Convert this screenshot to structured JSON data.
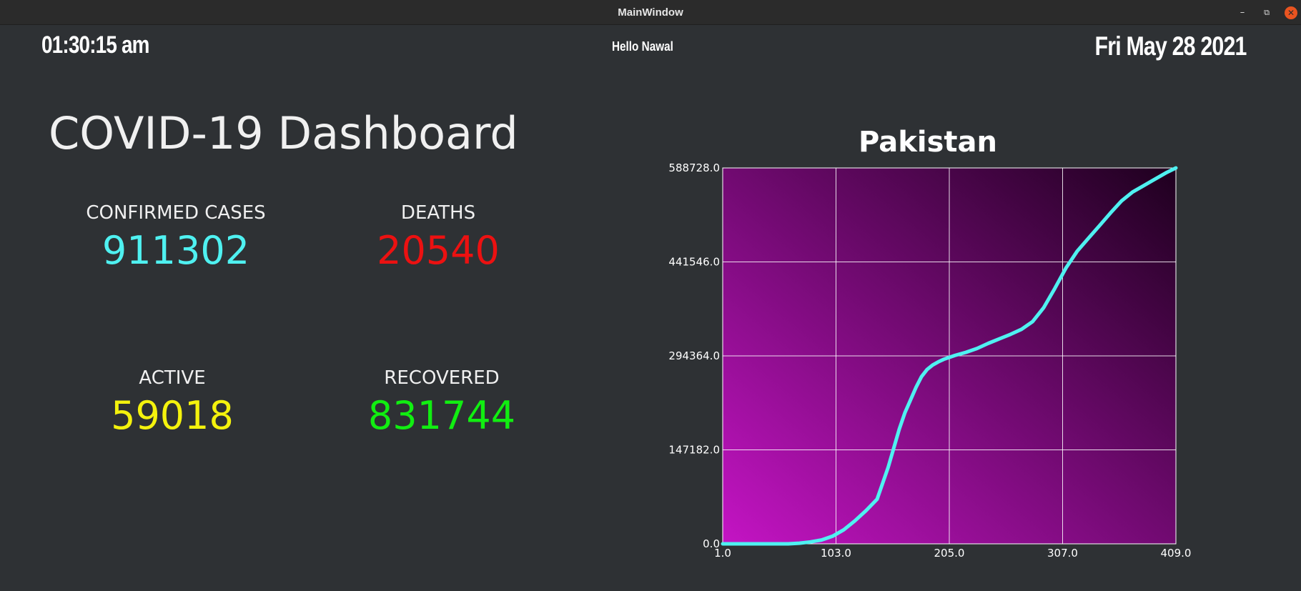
{
  "window": {
    "title": "MainWindow",
    "controls": {
      "minimize": "–",
      "maximize": "⧉",
      "close": "✕"
    }
  },
  "header": {
    "time": "01:30:15 am",
    "greeting": "Hello Nawal",
    "date": "Fri May 28 2021"
  },
  "dashboard": {
    "title": "COVID-19 Dashboard",
    "stats": {
      "confirmed": {
        "label": "CONFIRMED CASES",
        "value": "911302",
        "color": "#4ff1f1"
      },
      "deaths": {
        "label": "DEATHS",
        "value": "20540",
        "color": "#ec1111"
      },
      "active": {
        "label": "ACTIVE",
        "value": "59018",
        "color": "#f4f20d"
      },
      "recovered": {
        "label": "RECOVERED",
        "value": "831744",
        "color": "#11ee11"
      }
    }
  },
  "chart_data": {
    "type": "line",
    "title": "Pakistan",
    "xlabel": "",
    "ylabel": "",
    "xlim": [
      1.0,
      409.0
    ],
    "ylim": [
      0.0,
      588728.0
    ],
    "xticks": [
      "1.0",
      "103.0",
      "205.0",
      "307.0",
      "409.0"
    ],
    "yticks": [
      "0.0",
      "147182.0",
      "294364.0",
      "441546.0",
      "588728.0"
    ],
    "grid": true,
    "line_color": "#4ff1f1",
    "background_gradient": [
      "#c414c4",
      "#1e001e"
    ],
    "series": [
      {
        "name": "Pakistan",
        "x": [
          1,
          40,
          60,
          70,
          80,
          90,
          100,
          110,
          120,
          130,
          140,
          145,
          150,
          155,
          160,
          165,
          170,
          175,
          180,
          185,
          190,
          195,
          200,
          210,
          220,
          230,
          240,
          250,
          260,
          270,
          280,
          290,
          300,
          305,
          310,
          320,
          330,
          340,
          350,
          360,
          370,
          380,
          390,
          400,
          409
        ],
        "y": [
          0,
          0,
          0,
          1000,
          3000,
          6000,
          12000,
          22000,
          36000,
          52000,
          70000,
          95000,
          120000,
          150000,
          180000,
          205000,
          225000,
          245000,
          262000,
          273000,
          280000,
          285000,
          289000,
          295000,
          300000,
          306000,
          314000,
          321000,
          328000,
          336000,
          348000,
          370000,
          400000,
          416000,
          432000,
          458000,
          478000,
          498000,
          518000,
          537000,
          551000,
          561000,
          571000,
          581000,
          588728
        ]
      }
    ]
  }
}
